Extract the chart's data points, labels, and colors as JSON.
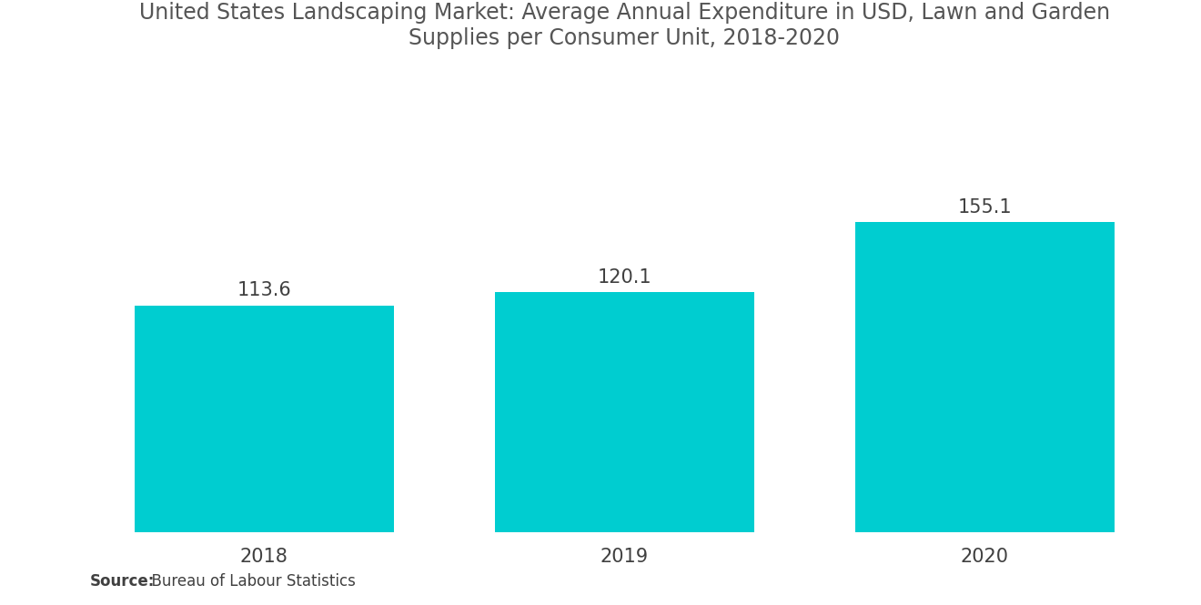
{
  "title": "United States Landscaping Market: Average Annual Expenditure in USD, Lawn and Garden\nSupplies per Consumer Unit, 2018-2020",
  "categories": [
    "2018",
    "2019",
    "2020"
  ],
  "values": [
    113.6,
    120.1,
    155.1
  ],
  "bar_color": "#00CDD0",
  "bar_width": 0.72,
  "label_color": "#404040",
  "label_fontsize": 15,
  "title_fontsize": 17,
  "tick_fontsize": 15,
  "source_bold": "Source:",
  "source_normal": "  Bureau of Labour Statistics",
  "source_fontsize": 12,
  "background_color": "#ffffff",
  "ylim": [
    0,
    230
  ],
  "title_color": "#555555",
  "xlim": [
    -0.5,
    2.5
  ]
}
